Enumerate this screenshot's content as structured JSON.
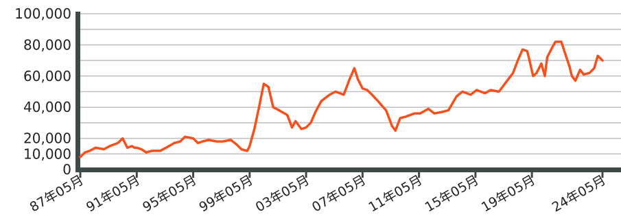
{
  "chart_data": {
    "type": "line",
    "title": "",
    "xlabel": "",
    "ylabel": "",
    "ylim": [
      0,
      100000
    ],
    "xlim": [
      "1987-05",
      "2024-05"
    ],
    "grid": "horizontal",
    "y_ticks": [
      {
        "value": 0,
        "label": "0"
      },
      {
        "value": 10000,
        "label": "10,000"
      },
      {
        "value": 20000,
        "label": "20,000"
      },
      {
        "value": 30000,
        "label": ""
      },
      {
        "value": 40000,
        "label": "40,000"
      },
      {
        "value": 50000,
        "label": ""
      },
      {
        "value": 60000,
        "label": "60,000"
      },
      {
        "value": 70000,
        "label": ""
      },
      {
        "value": 80000,
        "label": "80,000"
      },
      {
        "value": 90000,
        "label": ""
      },
      {
        "value": 100000,
        "label": "100,000"
      }
    ],
    "x_ticks": [
      {
        "value": "1987-05",
        "label": "87年05月"
      },
      {
        "value": "1991-05",
        "label": "91年05月"
      },
      {
        "value": "1995-05",
        "label": "95年05月"
      },
      {
        "value": "1999-05",
        "label": "99年05月"
      },
      {
        "value": "2003-05",
        "label": "03年05月"
      },
      {
        "value": "2007-05",
        "label": "07年05月"
      },
      {
        "value": "2011-05",
        "label": "11年05月"
      },
      {
        "value": "2015-05",
        "label": "15年05月"
      },
      {
        "value": "2019-05",
        "label": "19年05月"
      },
      {
        "value": "2024-05",
        "label": "24年05月"
      }
    ],
    "series": [
      {
        "color": "#f4511e",
        "x": [
          "1987-05",
          "1987-09",
          "1988-01",
          "1988-06",
          "1989-01",
          "1989-06",
          "1990-01",
          "1990-05",
          "1990-09",
          "1991-01",
          "1991-03",
          "1991-05",
          "1991-09",
          "1992-01",
          "1992-06",
          "1993-01",
          "1993-06",
          "1994-01",
          "1994-06",
          "1994-10",
          "1995-05",
          "1995-09",
          "1996-01",
          "1996-06",
          "1997-01",
          "1997-06",
          "1998-01",
          "1998-06",
          "1998-10",
          "1999-03",
          "1999-05",
          "1999-09",
          "2000-01",
          "2000-05",
          "2000-09",
          "2001-01",
          "2001-06",
          "2002-01",
          "2002-05",
          "2002-08",
          "2003-01",
          "2003-05",
          "2003-09",
          "2004-01",
          "2004-06",
          "2005-01",
          "2005-06",
          "2006-01",
          "2006-06",
          "2006-10",
          "2007-01",
          "2007-05",
          "2007-09",
          "2008-01",
          "2008-06",
          "2009-01",
          "2009-03",
          "2009-06",
          "2009-09",
          "2010-01",
          "2010-06",
          "2011-01",
          "2011-06",
          "2012-01",
          "2012-06",
          "2013-01",
          "2013-06",
          "2014-01",
          "2014-06",
          "2015-01",
          "2015-06",
          "2016-01",
          "2016-06",
          "2017-01",
          "2017-06",
          "2018-01",
          "2018-05",
          "2018-09",
          "2019-01",
          "2019-03",
          "2019-06",
          "2019-09",
          "2020-01",
          "2020-04",
          "2020-06",
          "2020-10",
          "2021-01",
          "2021-06",
          "2021-09",
          "2022-01",
          "2022-03",
          "2022-06",
          "2022-10",
          "2023-01",
          "2023-06",
          "2023-10",
          "2024-01",
          "2024-05"
        ],
        "values": [
          8000,
          11000,
          12000,
          14000,
          13000,
          15000,
          17000,
          20000,
          14000,
          15000,
          14000,
          14000,
          13000,
          11000,
          12000,
          12000,
          14000,
          17000,
          18000,
          21000,
          20000,
          17000,
          18000,
          19000,
          18000,
          18000,
          19000,
          16000,
          13000,
          12000,
          15000,
          26000,
          40000,
          55000,
          53000,
          40000,
          38000,
          35000,
          27000,
          31000,
          26000,
          27000,
          30000,
          37000,
          44000,
          48000,
          50000,
          48000,
          58000,
          65000,
          58000,
          52000,
          51000,
          48000,
          44000,
          38000,
          34000,
          28000,
          25000,
          33000,
          34000,
          36000,
          36000,
          39000,
          36000,
          37000,
          38000,
          47000,
          50000,
          48000,
          51000,
          49000,
          51000,
          50000,
          55000,
          62000,
          70000,
          77000,
          76000,
          70000,
          60000,
          62000,
          68000,
          60000,
          72000,
          78000,
          82000,
          82000,
          75000,
          66000,
          60000,
          57000,
          64000,
          61000,
          62000,
          65000,
          73000,
          70000
        ]
      }
    ]
  }
}
